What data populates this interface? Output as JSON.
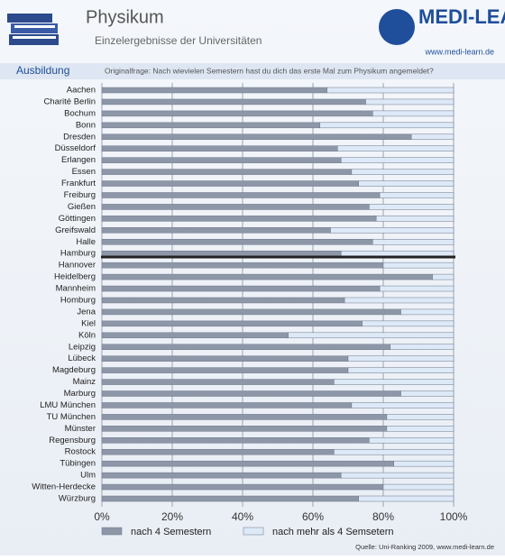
{
  "header": {
    "brand": "MEDI-LEARN",
    "url": "www.medi-learn.de",
    "section": "Ausbildung",
    "question": "Originalfrage: Nach wievielen Semestern hast du dich das erste Mal zum Physikum angemeldet?",
    "source": "Quelle: Uni-Ranking 2009, www.medi-learn.de"
  },
  "chart_data": {
    "type": "stacked-barh",
    "title": "Physikum",
    "subtitle": "Einzelergebnisse der Universitäten",
    "categories": [
      "Aachen",
      "Charité Berlin",
      "Bochum",
      "Bonn",
      "Dresden",
      "Düsseldorf",
      "Erlangen",
      "Essen",
      "Frankfurt",
      "Freiburg",
      "Gießen",
      "Göttingen",
      "Greifswald",
      "Halle",
      "Hamburg",
      "Hannover",
      "Heidelberg",
      "Mannheim",
      "Homburg",
      "Jena",
      "Kiel",
      "Köln",
      "Leipzig",
      "Lübeck",
      "Magdeburg",
      "Mainz",
      "Marburg",
      "LMU München",
      "TU München",
      "Münster",
      "Regensburg",
      "Rostock",
      "Tübingen",
      "Ulm",
      "Witten-Herdecke",
      "Würzburg"
    ],
    "series": [
      {
        "name": "nach 4 Semestern",
        "color": "#8e97a8",
        "values": [
          64,
          75,
          77,
          62,
          88,
          67,
          68,
          71,
          73,
          79,
          76,
          78,
          65,
          77,
          68,
          80,
          94,
          79,
          69,
          85,
          74,
          53,
          82,
          70,
          70,
          66,
          85,
          71,
          81,
          81,
          76,
          66,
          83,
          68,
          80,
          73
        ]
      },
      {
        "name": "nach mehr als 4 Semsetern",
        "color": "#dde9f7",
        "values": [
          36,
          25,
          23,
          38,
          12,
          33,
          32,
          29,
          27,
          21,
          24,
          22,
          35,
          23,
          32,
          20,
          6,
          21,
          31,
          15,
          26,
          47,
          18,
          30,
          30,
          34,
          15,
          29,
          19,
          19,
          24,
          34,
          17,
          32,
          20,
          27
        ]
      }
    ],
    "xlim": [
      0,
      100
    ],
    "xticks": [
      {
        "value": 0,
        "label": "0%"
      },
      {
        "value": 20,
        "label": "20%"
      },
      {
        "value": 40,
        "label": "40%"
      },
      {
        "value": 60,
        "label": "60%"
      },
      {
        "value": 80,
        "label": "80%"
      },
      {
        "value": 100,
        "label": "100%"
      }
    ],
    "grid": true,
    "legend": "bottom"
  }
}
